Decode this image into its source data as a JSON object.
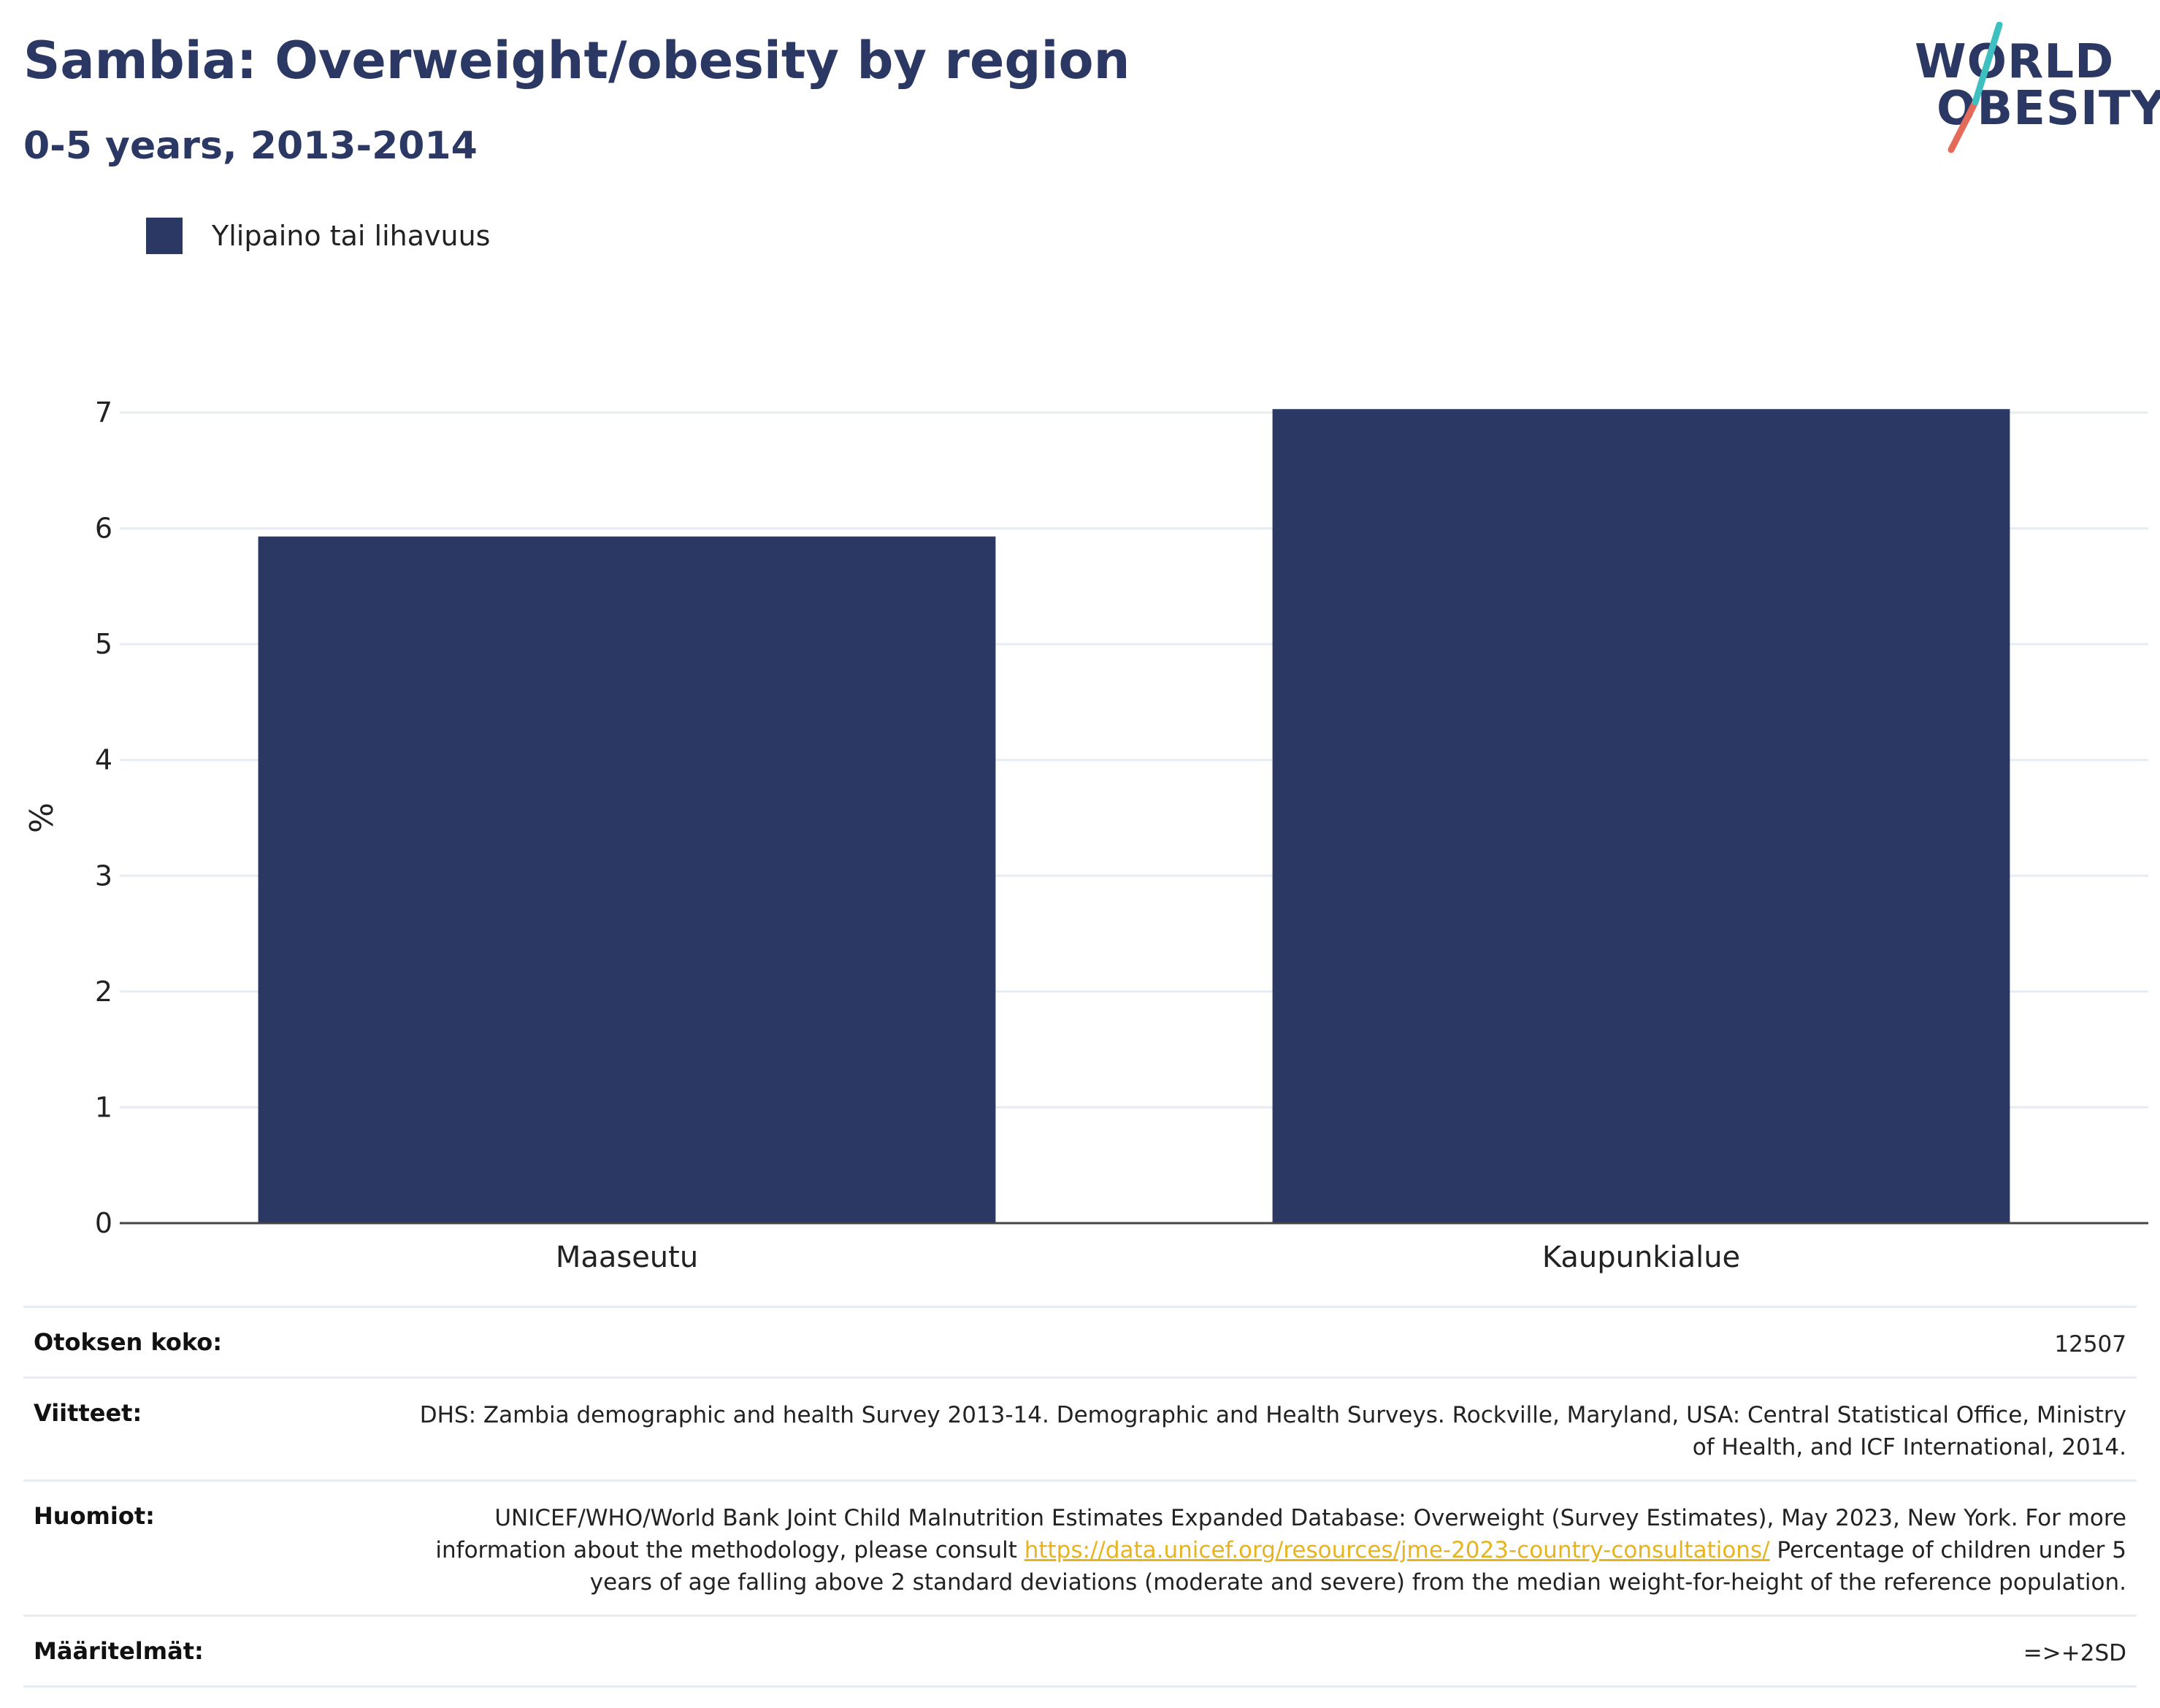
{
  "header": {
    "title": "Sambia: Overweight/obesity by region",
    "subtitle": "0-5 years, 2013-2014"
  },
  "logo": {
    "line1": "WORLD",
    "line2": "OBESITY"
  },
  "colors": {
    "bar": "#2b3863",
    "title": "#2b3863",
    "grid": "#e6ecf2",
    "link": "#e8b321",
    "logo_teal": "#3fc0c0",
    "logo_coral": "#e46b5a"
  },
  "chart_data": {
    "type": "bar",
    "title": "Sambia: Overweight/obesity by region",
    "subtitle": "0-5 years, 2013-2014",
    "categories": [
      "Maaseutu",
      "Kaupunkialue"
    ],
    "series": [
      {
        "name": "Ylipaino tai lihavuus",
        "values": [
          5.93,
          7.03
        ]
      }
    ],
    "xlabel": "",
    "ylabel": "%",
    "ylim": [
      0,
      7
    ],
    "yticks": [
      "0",
      "1",
      "2",
      "3",
      "4",
      "5",
      "6",
      "7"
    ],
    "grid": true,
    "legend_position": "top-left"
  },
  "meta": {
    "sample_label": "Otoksen koko:",
    "sample_value": "12507",
    "references_label": "Viitteet:",
    "references_value": "DHS: Zambia demographic and health Survey 2013-14. Demographic and Health Surveys. Rockville, Maryland, USA: Central Statistical Office, Ministry of Health, and ICF International, 2014.",
    "notes_label": "Huomiot:",
    "notes_text_1": "UNICEF/WHO/World Bank Joint Child Malnutrition Estimates Expanded Database: Overweight (Survey Estimates), May 2023, New York. For more information about the methodology, please consult ",
    "notes_link": "https://data.unicef.org/resources/jme-2023-country-consultations/",
    "notes_text_2": " Percentage of children under 5 years of age falling above 2 standard deviations (moderate and severe) from the median weight-for-height of the reference population.",
    "definitions_label": "Määritelmät:",
    "definitions_value": "=>+2SD"
  }
}
